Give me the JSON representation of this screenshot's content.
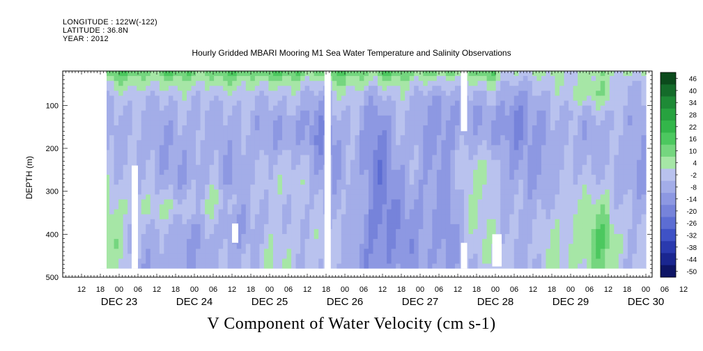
{
  "header": {
    "longitude": "LONGITUDE : 122W(-122)",
    "latitude": "LATITUDE : 36.8N",
    "year": "YEAR : 2012"
  },
  "chart_data": {
    "type": "heatmap",
    "title": "Hourly Gridded MBARI Mooring M1 Sea Water Temperature and Salinity Observations",
    "xlabel": "V Component of Water Velocity (cm s-1)",
    "ylabel": "DEPTH (m)",
    "ylim": [
      500,
      20
    ],
    "yticks": [
      100,
      200,
      300,
      400,
      500
    ],
    "xlim_hours": [
      -18,
      170
    ],
    "xtick_labels": [
      "12",
      "18",
      "00",
      "06",
      "12",
      "18",
      "00",
      "06",
      "12",
      "18",
      "00",
      "06",
      "12",
      "18",
      "00",
      "06",
      "12",
      "18",
      "00",
      "06",
      "12",
      "18",
      "00",
      "06",
      "12",
      "18",
      "00",
      "06",
      "12",
      "18",
      "00",
      "06",
      "12"
    ],
    "date_labels": [
      "DEC 23",
      "DEC 24",
      "DEC 25",
      "DEC 26",
      "DEC 27",
      "DEC 28",
      "DEC 29",
      "DEC 30"
    ],
    "colorbar": {
      "labels": [
        "46",
        "40",
        "34",
        "28",
        "22",
        "16",
        "10",
        "4",
        "-2",
        "-8",
        "-14",
        "-20",
        "-26",
        "-32",
        "-38",
        "-44",
        "-50"
      ],
      "colors": [
        "#0b4a1c",
        "#146b2a",
        "#1e8a36",
        "#27a23f",
        "#33b64a",
        "#4cc85f",
        "#75d67f",
        "#a6e6a6",
        "#b9c2ee",
        "#a3ade8",
        "#8d98e2",
        "#7683da",
        "#5c6dd3",
        "#3f52c6",
        "#2a3aae",
        "#1a2690",
        "#0e1566"
      ]
    },
    "missing_regions": [
      {
        "t0": -6,
        "t1": -4,
        "d0": 20,
        "d1": 480
      },
      {
        "t0": 4,
        "t1": 6,
        "d0": 240,
        "d1": 480
      },
      {
        "t0": 36,
        "t1": 38,
        "d0": 375,
        "d1": 420
      },
      {
        "t0": 65.5,
        "t1": 67.5,
        "d0": 20,
        "d1": 500
      },
      {
        "t0": 109,
        "t1": 111,
        "d0": 20,
        "d1": 160
      },
      {
        "t0": 109,
        "t1": 111,
        "d0": 420,
        "d1": 480
      },
      {
        "t0": 119,
        "t1": 122,
        "d0": 400,
        "d1": 475
      }
    ]
  }
}
